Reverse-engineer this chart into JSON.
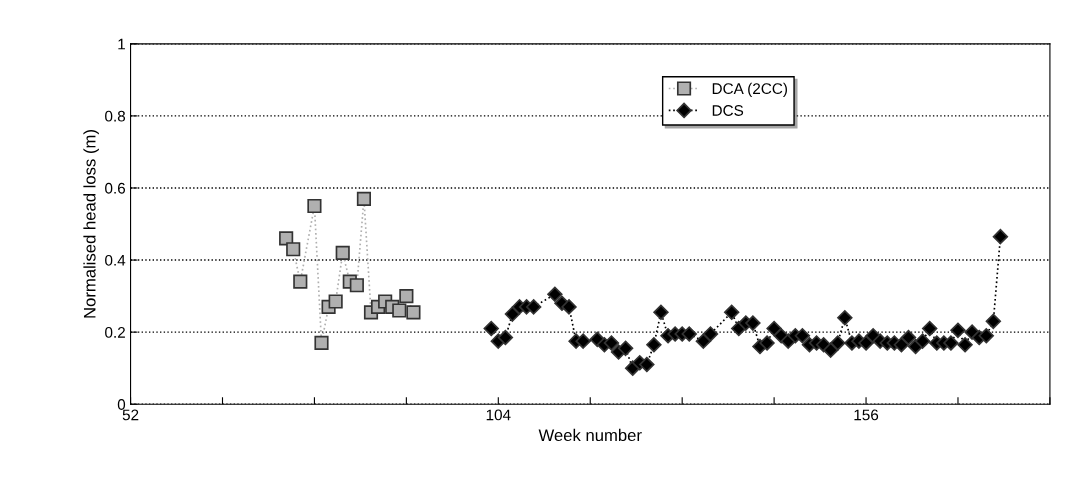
{
  "chart_data": {
    "type": "line",
    "xlabel": "Week number",
    "ylabel": "Normalised head loss (m)",
    "xlim": [
      52,
      182
    ],
    "xticks": [
      52,
      {
        "value": 65,
        "label": null
      },
      {
        "value": 78,
        "label": null
      },
      {
        "value": 91,
        "label": null
      },
      104,
      {
        "value": 117,
        "label": null
      },
      {
        "value": 130,
        "label": null
      },
      {
        "value": 143,
        "label": null
      },
      156,
      {
        "value": 169,
        "label": null
      },
      {
        "value": 182,
        "label": null
      }
    ],
    "ylim": [
      0,
      1
    ],
    "yticks": [
      0,
      0.2,
      0.4,
      0.6,
      0.8,
      1
    ],
    "grid": "y",
    "legend": "top right",
    "line_style": "dotted",
    "series": [
      {
        "name": "DCA (2CC)",
        "color": "#b0b0b0",
        "marker": "square",
        "x": [
          74,
          75,
          76,
          78,
          79,
          80,
          81,
          82,
          83,
          84,
          85,
          86,
          87,
          88,
          89,
          90,
          91,
          92
        ],
        "values": [
          0.46,
          0.43,
          0.34,
          0.55,
          0.17,
          0.27,
          0.285,
          0.42,
          0.34,
          0.33,
          0.57,
          0.255,
          0.27,
          0.285,
          0.27,
          0.26,
          0.3,
          0.255
        ]
      },
      {
        "name": "DCS",
        "color": "#000000",
        "marker": "diamond",
        "x": [
          103,
          104,
          105,
          106,
          107,
          108,
          109,
          112,
          113,
          114,
          115,
          116,
          118,
          119,
          120,
          121,
          122,
          123,
          124,
          125,
          126,
          127,
          128,
          129,
          130,
          131,
          133,
          134,
          137,
          138,
          139,
          140,
          141,
          142,
          143,
          144,
          145,
          146,
          147,
          148,
          149,
          150,
          151,
          152,
          153,
          154,
          155,
          156,
          157,
          158,
          159,
          160,
          161,
          162,
          163,
          164,
          165,
          166,
          167,
          168,
          169,
          170,
          171,
          172,
          173,
          174,
          175
        ],
        "values": [
          0.21,
          0.175,
          0.185,
          0.25,
          0.27,
          0.27,
          0.27,
          0.305,
          0.28,
          0.27,
          0.175,
          0.175,
          0.18,
          0.165,
          0.17,
          0.145,
          0.155,
          0.1,
          0.115,
          0.11,
          0.165,
          0.255,
          0.19,
          0.195,
          0.195,
          0.195,
          0.175,
          0.195,
          0.255,
          0.21,
          0.225,
          0.225,
          0.16,
          0.17,
          0.21,
          0.19,
          0.175,
          0.19,
          0.19,
          0.165,
          0.17,
          0.165,
          0.15,
          0.17,
          0.24,
          0.17,
          0.175,
          0.17,
          0.19,
          0.175,
          0.17,
          0.17,
          0.165,
          0.185,
          0.16,
          0.175,
          0.21,
          0.17,
          0.17,
          0.17,
          0.205,
          0.165,
          0.2,
          0.185,
          0.19,
          0.23,
          0.465
        ]
      }
    ]
  }
}
